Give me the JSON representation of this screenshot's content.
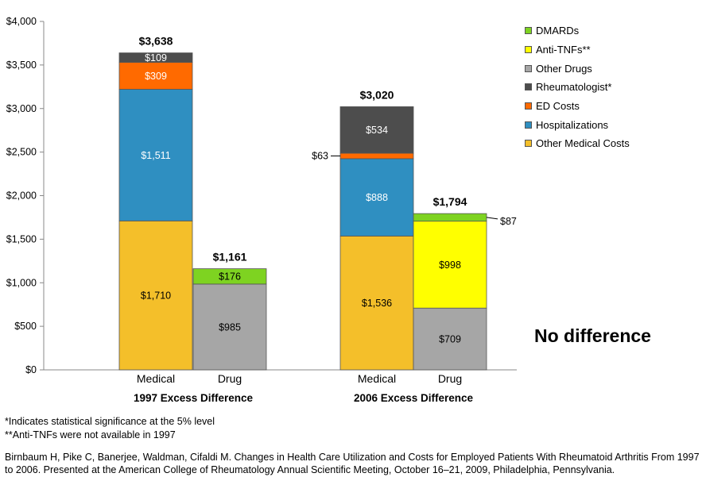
{
  "chart_data": {
    "type": "bar",
    "stacked": true,
    "ylim": [
      0,
      4000
    ],
    "yticks": [
      "$0",
      "$500",
      "$1,000",
      "$1,500",
      "$2,000",
      "$2,500",
      "$3,000",
      "$3,500",
      "$4,000"
    ],
    "ytick_values": [
      0,
      500,
      1000,
      1500,
      2000,
      2500,
      3000,
      3500,
      4000
    ],
    "groups": [
      {
        "label": "1997 Excess Difference",
        "bars": [
          {
            "label": "Medical",
            "total_label": "$3,638",
            "segments": [
              {
                "series": "Other Medical Costs",
                "value": 1710,
                "label": "$1,710"
              },
              {
                "series": "Hospitalizations",
                "value": 1511,
                "label": "$1,511"
              },
              {
                "series": "ED Costs",
                "value": 309,
                "label": "$309"
              },
              {
                "series": "Rheumatologist*",
                "value": 109,
                "label": "$109"
              }
            ]
          },
          {
            "label": "Drug",
            "total_label": "$1,161",
            "segments": [
              {
                "series": "Other Drugs",
                "value": 985,
                "label": "$985"
              },
              {
                "series": "DMARDs",
                "value": 176,
                "label": "$176"
              }
            ]
          }
        ]
      },
      {
        "label": "2006 Excess Difference",
        "bars": [
          {
            "label": "Medical",
            "total_label": "$3,020",
            "segments": [
              {
                "series": "Other Medical Costs",
                "value": 1536,
                "label": "$1,536"
              },
              {
                "series": "Hospitalizations",
                "value": 888,
                "label": "$888"
              },
              {
                "series": "ED Costs",
                "value": 63,
                "label": "$63",
                "callout": "left"
              },
              {
                "series": "Rheumatologist*",
                "value": 534,
                "label": "$534"
              }
            ]
          },
          {
            "label": "Drug",
            "total_label": "$1,794",
            "segments": [
              {
                "series": "Other Drugs",
                "value": 709,
                "label": "$709"
              },
              {
                "series": "Anti-TNFs**",
                "value": 998,
                "label": "$998"
              },
              {
                "series": "DMARDs",
                "value": 87,
                "label": "$87",
                "callout": "right"
              }
            ]
          }
        ]
      }
    ],
    "legend": [
      {
        "name": "DMARDs",
        "color": "#7ed321"
      },
      {
        "name": "Anti-TNFs**",
        "color": "#ffff00"
      },
      {
        "name": "Other Drugs",
        "color": "#a6a6a6"
      },
      {
        "name": "Rheumatologist*",
        "color": "#4d4d4d"
      },
      {
        "name": "ED Costs",
        "color": "#ff6a00"
      },
      {
        "name": "Hospitalizations",
        "color": "#2f8fc1"
      },
      {
        "name": "Other Medical Costs",
        "color": "#f4bf2a"
      }
    ],
    "label_colors": {
      "Other Medical Costs": "#000000",
      "Hospitalizations": "#ffffff",
      "ED Costs": "#ffffff",
      "Rheumatologist*": "#ffffff",
      "Other Drugs": "#000000",
      "Anti-TNFs**": "#000000",
      "DMARDs": "#000000"
    },
    "legend_placement": "top-right",
    "grid": false
  },
  "annotation": "No difference",
  "footnotes": [
    "*Indicates statistical significance at the 5% level",
    "**Anti-TNFs were not available in 1997"
  ],
  "citation": "Birnbaum H, Pike C, Banerjee, Waldman, Cifaldi M. Changes in Health Care Utilization and Costs for Employed Patients With Rheumatoid Arthritis From 1997 to 2006. Presented at the American College of Rheumatology Annual Scientific Meeting, October 16–21, 2009, Philadelphia, Pennsylvania."
}
